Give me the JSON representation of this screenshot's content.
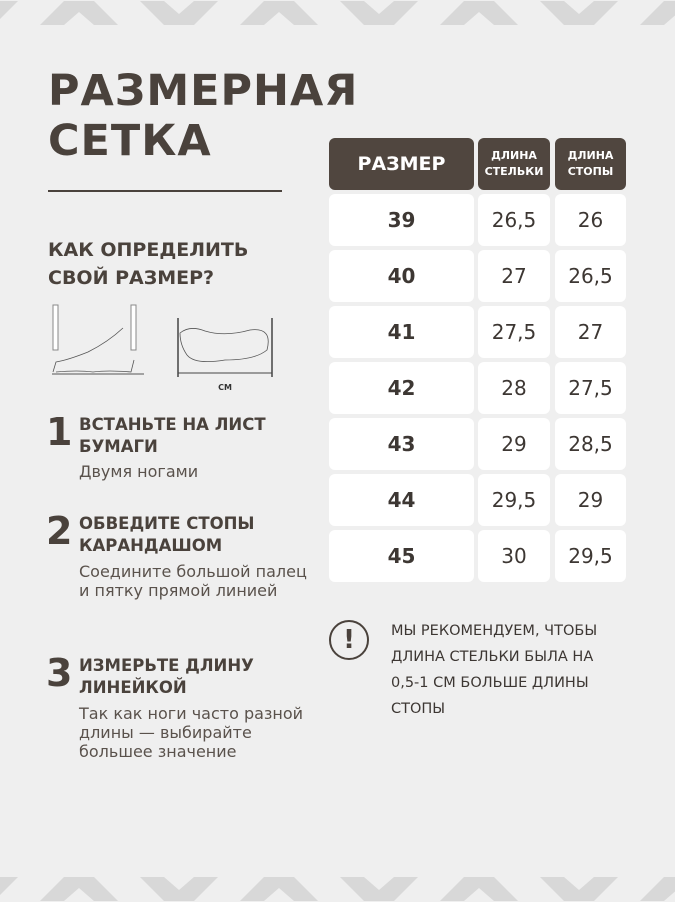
{
  "title": [
    "РАЗМЕРНАЯ",
    "СЕТКА"
  ],
  "howto": [
    "КАК ОПРЕДЕЛИТЬ",
    "СВОЙ РАЗМЕР?"
  ],
  "illustration_label": "СМ",
  "steps": [
    {
      "num": "1",
      "head": "ВСТАНЬТЕ НА ЛИСТ БУМАГИ",
      "desc": "Двумя ногами"
    },
    {
      "num": "2",
      "head": "ОБВЕДИТЕ СТОПЫ КАРАНДАШОМ",
      "desc": "Соедините большой палец и пятку прямой линией"
    },
    {
      "num": "3",
      "head": "ИЗМЕРЬТЕ ДЛИНУ ЛИНЕЙКОЙ",
      "desc": "Так как ноги часто разной длины — выбирайте большее значение"
    }
  ],
  "table": {
    "headers": [
      "РАЗМЕР",
      "ДЛИНА СТЕЛЬКИ",
      "ДЛИНА СТОПЫ"
    ],
    "rows": [
      [
        "39",
        "26,5",
        "26"
      ],
      [
        "40",
        "27",
        "26,5"
      ],
      [
        "41",
        "27,5",
        "27"
      ],
      [
        "42",
        "28",
        "27,5"
      ],
      [
        "43",
        "29",
        "28,5"
      ],
      [
        "44",
        "29,5",
        "29"
      ],
      [
        "45",
        "30",
        "29,5"
      ]
    ]
  },
  "recommendation": "МЫ РЕКОМЕНДУЕМ, ЧТОБЫ ДЛИНА СТЕЛЬКИ БЫЛА НА 0,5-1 СМ БОЛЬШЕ ДЛИНЫ СТОПЫ",
  "warning_icon": "exclamation-circle-icon",
  "colors": {
    "background": "#efefef",
    "header": "#50463f",
    "text": "#3d3733",
    "pattern": "#d8d8d8"
  }
}
